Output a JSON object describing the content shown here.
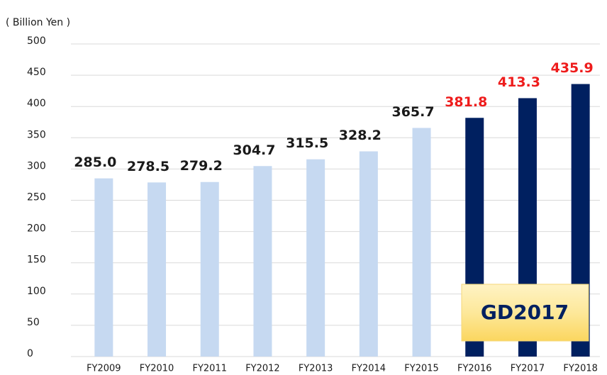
{
  "chart_data": {
    "type": "bar",
    "y_axis_label": "( Billion Yen )",
    "categories": [
      "FY2009",
      "FY2010",
      "FY2011",
      "FY2012",
      "FY2013",
      "FY2014",
      "FY2015",
      "FY2016",
      "FY2017",
      "FY2018"
    ],
    "values": [
      285.0,
      278.5,
      279.2,
      304.7,
      315.5,
      328.2,
      365.7,
      381.8,
      413.3,
      435.9
    ],
    "value_labels": [
      "285.0",
      "278.5",
      "279.2",
      "304.7",
      "315.5",
      "328.2",
      "365.7",
      "381.8",
      "413.3",
      "435.9"
    ],
    "colors": [
      "#c6d9f1",
      "#c6d9f1",
      "#c6d9f1",
      "#c6d9f1",
      "#c6d9f1",
      "#c6d9f1",
      "#c6d9f1",
      "#002060",
      "#002060",
      "#002060"
    ],
    "value_label_colors": [
      "#1a1a1a",
      "#1a1a1a",
      "#1a1a1a",
      "#1a1a1a",
      "#1a1a1a",
      "#1a1a1a",
      "#1a1a1a",
      "#ee1c1c",
      "#ee1c1c",
      "#ee1c1c"
    ],
    "annotation": "GD2017",
    "ylim": [
      0,
      500
    ],
    "yticks": [
      0,
      50,
      100,
      150,
      200,
      250,
      300,
      350,
      400,
      450,
      500
    ],
    "grid": true
  }
}
